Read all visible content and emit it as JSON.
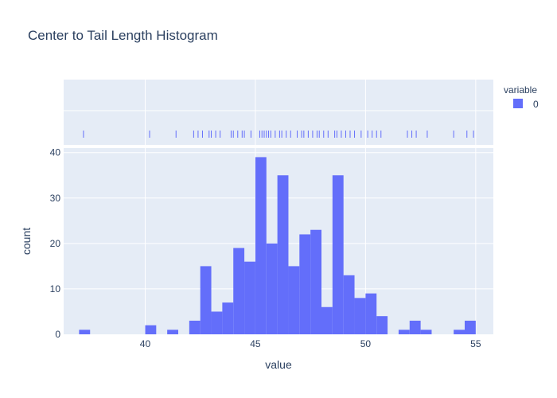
{
  "chart_data": {
    "type": "bar",
    "title": "Center to Tail Length Histogram",
    "xlabel": "value",
    "ylabel": "count",
    "xlim": [
      36.3,
      55.8
    ],
    "ylim": [
      0,
      41
    ],
    "xticks": [
      40,
      45,
      50,
      55
    ],
    "yticks": [
      0,
      10,
      20,
      30,
      40
    ],
    "bin_width": 0.5,
    "legend": {
      "title": "variable",
      "position": "top-right"
    },
    "series": [
      {
        "name": "0",
        "color": "#636efa",
        "bins": [
          {
            "x0": 37.0,
            "x1": 37.5,
            "count": 1
          },
          {
            "x0": 40.0,
            "x1": 40.5,
            "count": 2
          },
          {
            "x0": 41.0,
            "x1": 41.5,
            "count": 1
          },
          {
            "x0": 42.0,
            "x1": 42.5,
            "count": 3
          },
          {
            "x0": 42.5,
            "x1": 43.0,
            "count": 15
          },
          {
            "x0": 43.0,
            "x1": 43.5,
            "count": 5
          },
          {
            "x0": 43.5,
            "x1": 44.0,
            "count": 7
          },
          {
            "x0": 44.0,
            "x1": 44.5,
            "count": 19
          },
          {
            "x0": 44.5,
            "x1": 45.0,
            "count": 16
          },
          {
            "x0": 45.0,
            "x1": 45.5,
            "count": 39
          },
          {
            "x0": 45.5,
            "x1": 46.0,
            "count": 20
          },
          {
            "x0": 46.0,
            "x1": 46.5,
            "count": 35
          },
          {
            "x0": 46.5,
            "x1": 47.0,
            "count": 15
          },
          {
            "x0": 47.0,
            "x1": 47.5,
            "count": 22
          },
          {
            "x0": 47.5,
            "x1": 48.0,
            "count": 23
          },
          {
            "x0": 48.0,
            "x1": 48.5,
            "count": 6
          },
          {
            "x0": 48.5,
            "x1": 49.0,
            "count": 35
          },
          {
            "x0": 49.0,
            "x1": 49.5,
            "count": 13
          },
          {
            "x0": 49.5,
            "x1": 50.0,
            "count": 8
          },
          {
            "x0": 50.0,
            "x1": 50.5,
            "count": 9
          },
          {
            "x0": 50.5,
            "x1": 51.0,
            "count": 4
          },
          {
            "x0": 51.5,
            "x1": 52.0,
            "count": 1
          },
          {
            "x0": 52.0,
            "x1": 52.5,
            "count": 3
          },
          {
            "x0": 52.5,
            "x1": 53.0,
            "count": 1
          },
          {
            "x0": 54.0,
            "x1": 54.5,
            "count": 1
          },
          {
            "x0": 54.5,
            "x1": 55.0,
            "count": 3
          }
        ],
        "rug_values": [
          37.2,
          40.2,
          41.4,
          42.2,
          42.4,
          42.6,
          42.9,
          43.0,
          43.2,
          43.4,
          43.9,
          44.0,
          44.2,
          44.4,
          44.5,
          44.8,
          45.2,
          45.3,
          45.4,
          45.5,
          45.6,
          45.7,
          45.9,
          46.1,
          46.2,
          46.4,
          46.6,
          46.9,
          47.1,
          47.2,
          47.4,
          47.6,
          47.8,
          47.9,
          48.1,
          48.3,
          48.6,
          48.7,
          48.9,
          49.1,
          49.3,
          49.5,
          49.8,
          50.1,
          50.3,
          50.5,
          50.7,
          51.9,
          52.1,
          52.3,
          52.8,
          54.0,
          54.6,
          54.9
        ]
      }
    ]
  }
}
